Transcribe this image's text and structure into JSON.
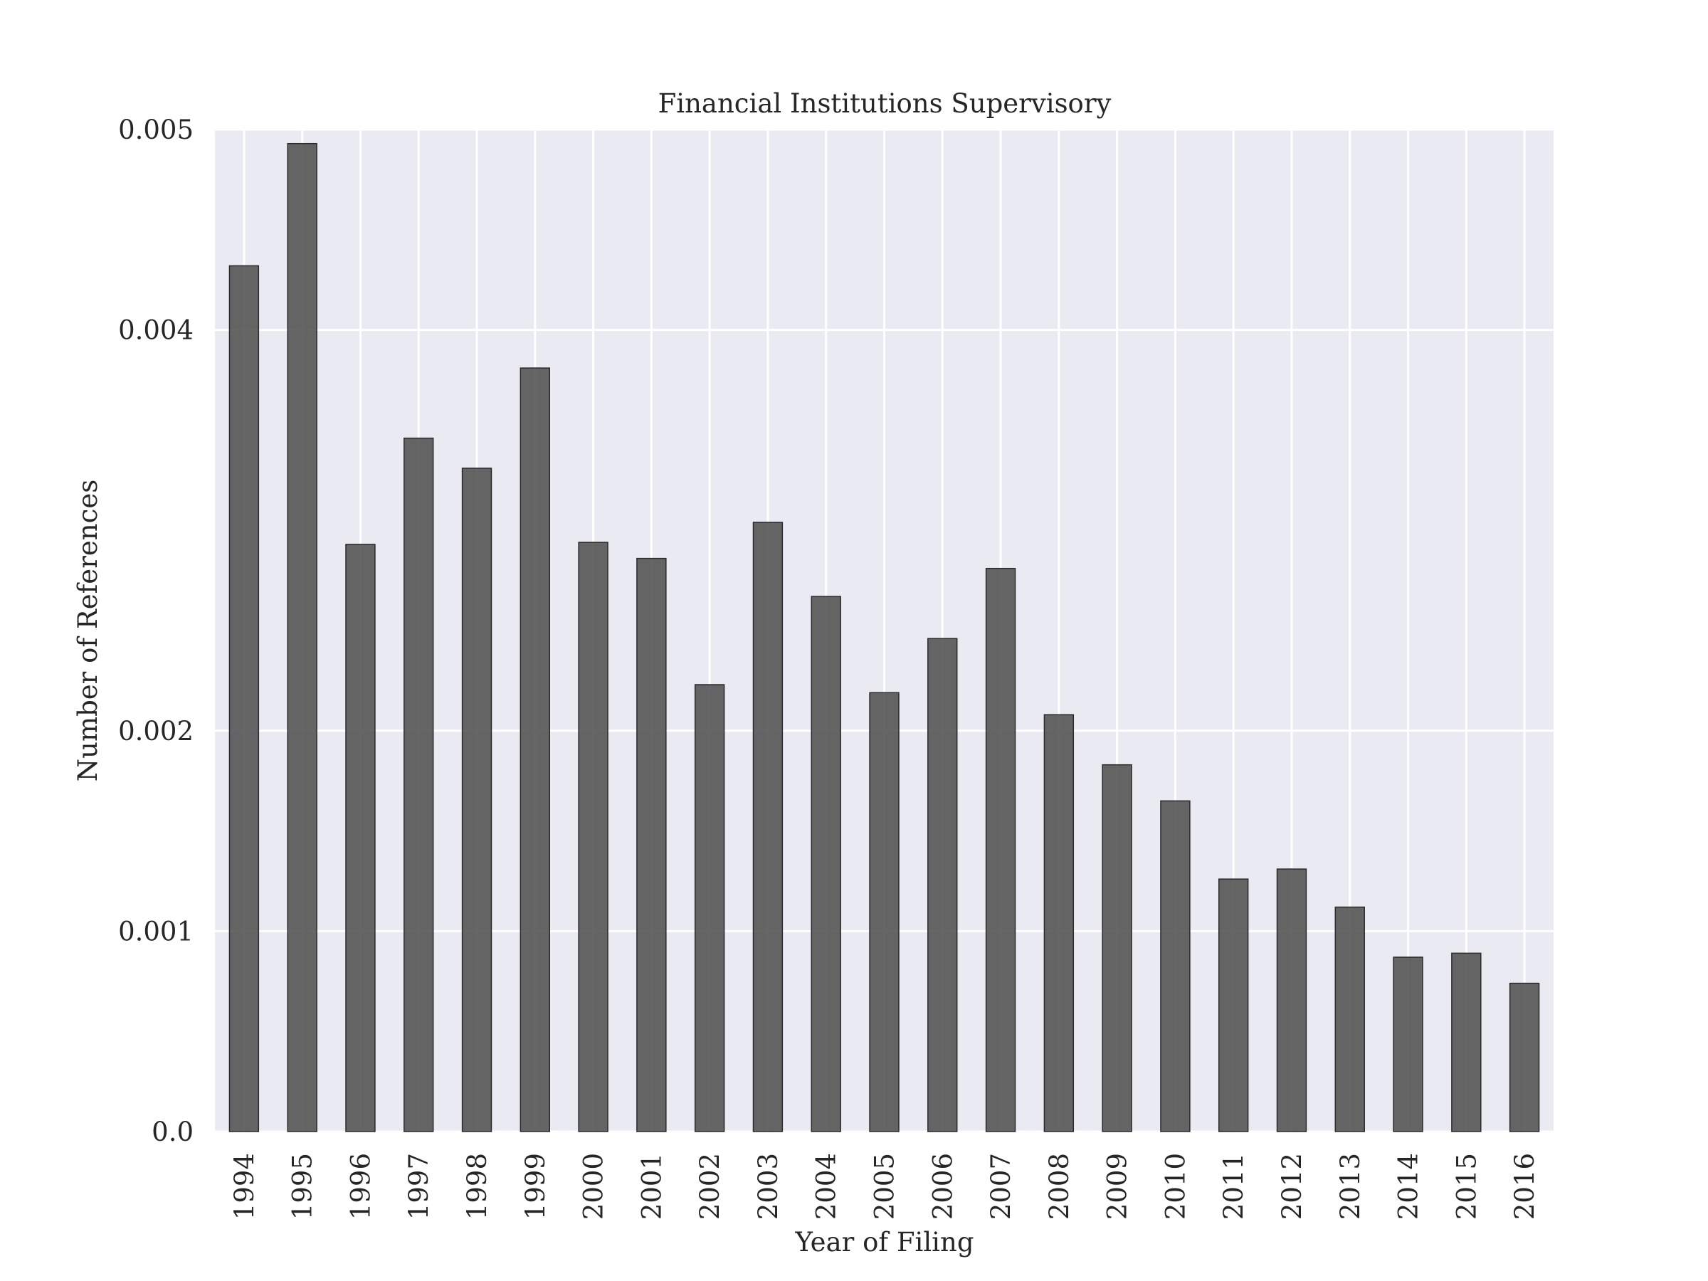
{
  "chart_data": {
    "type": "bar",
    "title": "Financial Institutions Supervisory",
    "xlabel": "Year of Filing",
    "ylabel": "Number of References",
    "categories": [
      "1994",
      "1995",
      "1996",
      "1997",
      "1998",
      "1999",
      "2000",
      "2001",
      "2002",
      "2003",
      "2004",
      "2005",
      "2006",
      "2007",
      "2008",
      "2009",
      "2010",
      "2011",
      "2012",
      "2013",
      "2014",
      "2015",
      "2016"
    ],
    "values": [
      0.00432,
      0.00493,
      0.00293,
      0.00346,
      0.00331,
      0.00381,
      0.00294,
      0.00286,
      0.00223,
      0.00304,
      0.00267,
      0.00219,
      0.00246,
      0.00281,
      0.00208,
      0.00183,
      0.00165,
      0.00126,
      0.00131,
      0.00112,
      0.00087,
      0.00089,
      0.00074
    ],
    "yticks": [
      0.0,
      0.001,
      0.002,
      0.004,
      0.005
    ],
    "ytick_labels": [
      "0.0",
      "0.001",
      "0.002",
      "0.004",
      "0.005"
    ],
    "ylim": [
      0,
      0.005
    ],
    "grid": true,
    "colors": {
      "bar": "#555555",
      "bar_edge": "#2a2a2a",
      "plot_background": "#eaeaf2",
      "grid": "#ffffff"
    }
  }
}
